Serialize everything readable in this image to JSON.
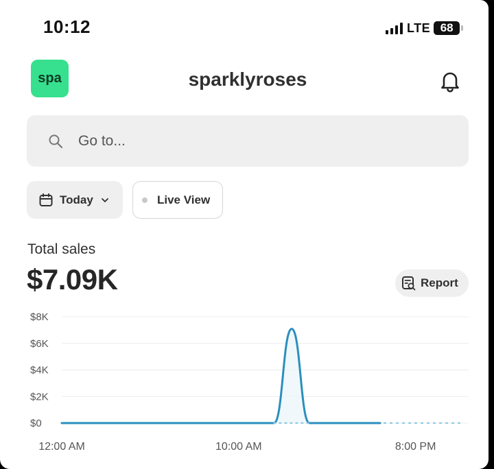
{
  "status_bar": {
    "time": "10:12",
    "network": "LTE",
    "battery": "68"
  },
  "header": {
    "logo_text": "spa",
    "store_name": "sparklyroses",
    "icons": {
      "notifications": "bell-icon"
    }
  },
  "search": {
    "placeholder": "Go to...",
    "icon": "search-icon"
  },
  "filters": {
    "date_label": "Today",
    "date_icon": "calendar-icon",
    "live_label": "Live View"
  },
  "metric": {
    "label": "Total sales",
    "value": "$7.09K",
    "report_label": "Report",
    "report_icon": "report-icon"
  },
  "colors": {
    "brand_logo": "#36e08e",
    "series_line": "#2a8fbd",
    "forecast_dots": "#8cc8e3"
  },
  "chart_data": {
    "type": "line",
    "y_ticks": [
      "$8K",
      "$6K",
      "$4K",
      "$2K",
      "$0"
    ],
    "ylim": [
      0,
      8000
    ],
    "x_tick_labels": [
      "12:00 AM",
      "10:00 AM",
      "8:00 PM"
    ],
    "x": [
      "12 AM",
      "1 AM",
      "2 AM",
      "3 AM",
      "4 AM",
      "5 AM",
      "6 AM",
      "7 AM",
      "8 AM",
      "9 AM",
      "10 AM",
      "11 AM",
      "12 PM",
      "1 PM",
      "2 PM",
      "3 PM",
      "4 PM",
      "5 PM",
      "6 PM",
      "7 PM",
      "8 PM",
      "9 PM",
      "10 PM",
      "11 PM"
    ],
    "series": [
      {
        "values": [
          0,
          0,
          0,
          0,
          0,
          0,
          0,
          0,
          0,
          0,
          0,
          0,
          0,
          7090,
          0,
          0,
          0,
          0,
          0,
          null,
          null,
          null,
          null,
          null
        ]
      }
    ],
    "grid": true
  }
}
